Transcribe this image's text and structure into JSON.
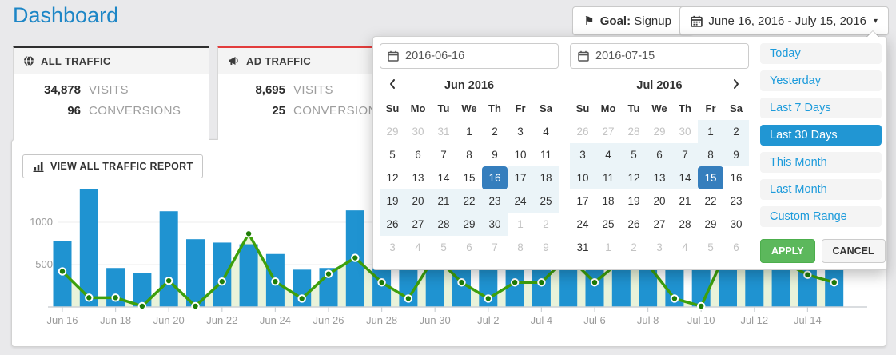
{
  "page": {
    "title": "Dashboard"
  },
  "toolbar": {
    "goal": {
      "prefix": "Goal:",
      "value": "Signup"
    },
    "date_range": {
      "value": "June 16, 2016 - July 15, 2016"
    }
  },
  "cards": [
    {
      "title": "ALL TRAFFIC",
      "icon": "globe-icon",
      "accent_color": "#2f2f2f",
      "stats": [
        {
          "value": "34,878",
          "label": "VISITS"
        },
        {
          "value": "96",
          "label": "CONVERSIONS"
        }
      ]
    },
    {
      "title": "AD TRAFFIC",
      "icon": "megaphone-icon",
      "accent_color": "#e23c3c",
      "stats": [
        {
          "value": "8,695",
          "label": "VISITS"
        },
        {
          "value": "25",
          "label": "CONVERSIONS"
        }
      ]
    }
  ],
  "report_button": "VIEW ALL TRAFFIC REPORT",
  "chart_data": {
    "type": "bar",
    "categories": [
      "Jun 16",
      "Jun 17",
      "Jun 18",
      "Jun 19",
      "Jun 20",
      "Jun 21",
      "Jun 22",
      "Jun 23",
      "Jun 24",
      "Jun 25",
      "Jun 26",
      "Jun 27",
      "Jun 28",
      "Jun 29",
      "Jun 30",
      "Jul 1",
      "Jul 2",
      "Jul 3",
      "Jul 4",
      "Jul 5",
      "Jul 6",
      "Jul 7",
      "Jul 8",
      "Jul 9",
      "Jul 10",
      "Jul 11",
      "Jul 12",
      "Jul 13",
      "Jul 14",
      "Jul 15"
    ],
    "series": [
      {
        "name": "Visits",
        "kind": "bar",
        "color": "#1f93d1",
        "values": [
          780,
          1390,
          460,
          400,
          1130,
          800,
          760,
          740,
          625,
          440,
          460,
          1140,
          700,
          650,
          800,
          750,
          600,
          650,
          700,
          800,
          750,
          700,
          650,
          600,
          700,
          800,
          750,
          700,
          900,
          850
        ]
      },
      {
        "name": "Conversions",
        "kind": "line",
        "color": "#3da00c",
        "marker_color": "#1f7d07",
        "area_color": "#e9f3da",
        "values": [
          420,
          110,
          110,
          10,
          310,
          10,
          300,
          865,
          300,
          100,
          390,
          580,
          290,
          100,
          600,
          290,
          100,
          290,
          290,
          600,
          290,
          550,
          500,
          100,
          10,
          700,
          650,
          550,
          380,
          290
        ]
      }
    ],
    "title": "",
    "xlabel": "",
    "ylabel": "",
    "yticks": [
      500,
      1000
    ],
    "ylim": [
      0,
      1450
    ],
    "x_tick_step": 2,
    "grid": true,
    "legend": false,
    "axis_text_color": "#9b9b9b"
  },
  "datepicker": {
    "inputs": {
      "start": "2016-06-16",
      "end": "2016-07-15"
    },
    "weekdays": [
      "Su",
      "Mo",
      "Tu",
      "We",
      "Th",
      "Fr",
      "Sa"
    ],
    "calendars": [
      {
        "title": "Jun 2016",
        "nav_prev": true,
        "nav_next": false,
        "weeks": [
          [
            {
              "d": "29",
              "s": "off"
            },
            {
              "d": "30",
              "s": "off"
            },
            {
              "d": "31",
              "s": "off"
            },
            {
              "d": "1",
              "s": ""
            },
            {
              "d": "2",
              "s": ""
            },
            {
              "d": "3",
              "s": ""
            },
            {
              "d": "4",
              "s": ""
            }
          ],
          [
            {
              "d": "5",
              "s": ""
            },
            {
              "d": "6",
              "s": ""
            },
            {
              "d": "7",
              "s": ""
            },
            {
              "d": "8",
              "s": ""
            },
            {
              "d": "9",
              "s": ""
            },
            {
              "d": "10",
              "s": ""
            },
            {
              "d": "11",
              "s": ""
            }
          ],
          [
            {
              "d": "12",
              "s": ""
            },
            {
              "d": "13",
              "s": ""
            },
            {
              "d": "14",
              "s": ""
            },
            {
              "d": "15",
              "s": ""
            },
            {
              "d": "16",
              "s": "active"
            },
            {
              "d": "17",
              "s": "in-range"
            },
            {
              "d": "18",
              "s": "in-range"
            }
          ],
          [
            {
              "d": "19",
              "s": "in-range"
            },
            {
              "d": "20",
              "s": "in-range"
            },
            {
              "d": "21",
              "s": "in-range"
            },
            {
              "d": "22",
              "s": "in-range"
            },
            {
              "d": "23",
              "s": "in-range"
            },
            {
              "d": "24",
              "s": "in-range"
            },
            {
              "d": "25",
              "s": "in-range"
            }
          ],
          [
            {
              "d": "26",
              "s": "in-range"
            },
            {
              "d": "27",
              "s": "in-range"
            },
            {
              "d": "28",
              "s": "in-range"
            },
            {
              "d": "29",
              "s": "in-range"
            },
            {
              "d": "30",
              "s": "in-range"
            },
            {
              "d": "1",
              "s": "off"
            },
            {
              "d": "2",
              "s": "off"
            }
          ],
          [
            {
              "d": "3",
              "s": "off"
            },
            {
              "d": "4",
              "s": "off"
            },
            {
              "d": "5",
              "s": "off"
            },
            {
              "d": "6",
              "s": "off"
            },
            {
              "d": "7",
              "s": "off"
            },
            {
              "d": "8",
              "s": "off"
            },
            {
              "d": "9",
              "s": "off"
            }
          ]
        ]
      },
      {
        "title": "Jul 2016",
        "nav_prev": false,
        "nav_next": true,
        "weeks": [
          [
            {
              "d": "26",
              "s": "off"
            },
            {
              "d": "27",
              "s": "off"
            },
            {
              "d": "28",
              "s": "off"
            },
            {
              "d": "29",
              "s": "off"
            },
            {
              "d": "30",
              "s": "off"
            },
            {
              "d": "1",
              "s": "in-range"
            },
            {
              "d": "2",
              "s": "in-range"
            }
          ],
          [
            {
              "d": "3",
              "s": "in-range"
            },
            {
              "d": "4",
              "s": "in-range"
            },
            {
              "d": "5",
              "s": "in-range"
            },
            {
              "d": "6",
              "s": "in-range"
            },
            {
              "d": "7",
              "s": "in-range"
            },
            {
              "d": "8",
              "s": "in-range"
            },
            {
              "d": "9",
              "s": "in-range"
            }
          ],
          [
            {
              "d": "10",
              "s": "in-range"
            },
            {
              "d": "11",
              "s": "in-range"
            },
            {
              "d": "12",
              "s": "in-range"
            },
            {
              "d": "13",
              "s": "in-range"
            },
            {
              "d": "14",
              "s": "in-range"
            },
            {
              "d": "15",
              "s": "active"
            },
            {
              "d": "16",
              "s": ""
            }
          ],
          [
            {
              "d": "17",
              "s": ""
            },
            {
              "d": "18",
              "s": ""
            },
            {
              "d": "19",
              "s": ""
            },
            {
              "d": "20",
              "s": ""
            },
            {
              "d": "21",
              "s": ""
            },
            {
              "d": "22",
              "s": ""
            },
            {
              "d": "23",
              "s": ""
            }
          ],
          [
            {
              "d": "24",
              "s": ""
            },
            {
              "d": "25",
              "s": ""
            },
            {
              "d": "26",
              "s": ""
            },
            {
              "d": "27",
              "s": ""
            },
            {
              "d": "28",
              "s": ""
            },
            {
              "d": "29",
              "s": ""
            },
            {
              "d": "30",
              "s": ""
            }
          ],
          [
            {
              "d": "31",
              "s": ""
            },
            {
              "d": "1",
              "s": "off"
            },
            {
              "d": "2",
              "s": "off"
            },
            {
              "d": "3",
              "s": "off"
            },
            {
              "d": "4",
              "s": "off"
            },
            {
              "d": "5",
              "s": "off"
            },
            {
              "d": "6",
              "s": "off"
            }
          ]
        ]
      }
    ],
    "ranges": [
      "Today",
      "Yesterday",
      "Last 7 Days",
      "Last 30 Days",
      "This Month",
      "Last Month",
      "Custom Range"
    ],
    "active_range": "Last 30 Days",
    "buttons": {
      "apply": "APPLY",
      "cancel": "CANCEL"
    },
    "colors": {
      "selected_day": "#357ebd",
      "in_range": "#ebf4f8",
      "active_range": "#2196d3"
    }
  }
}
